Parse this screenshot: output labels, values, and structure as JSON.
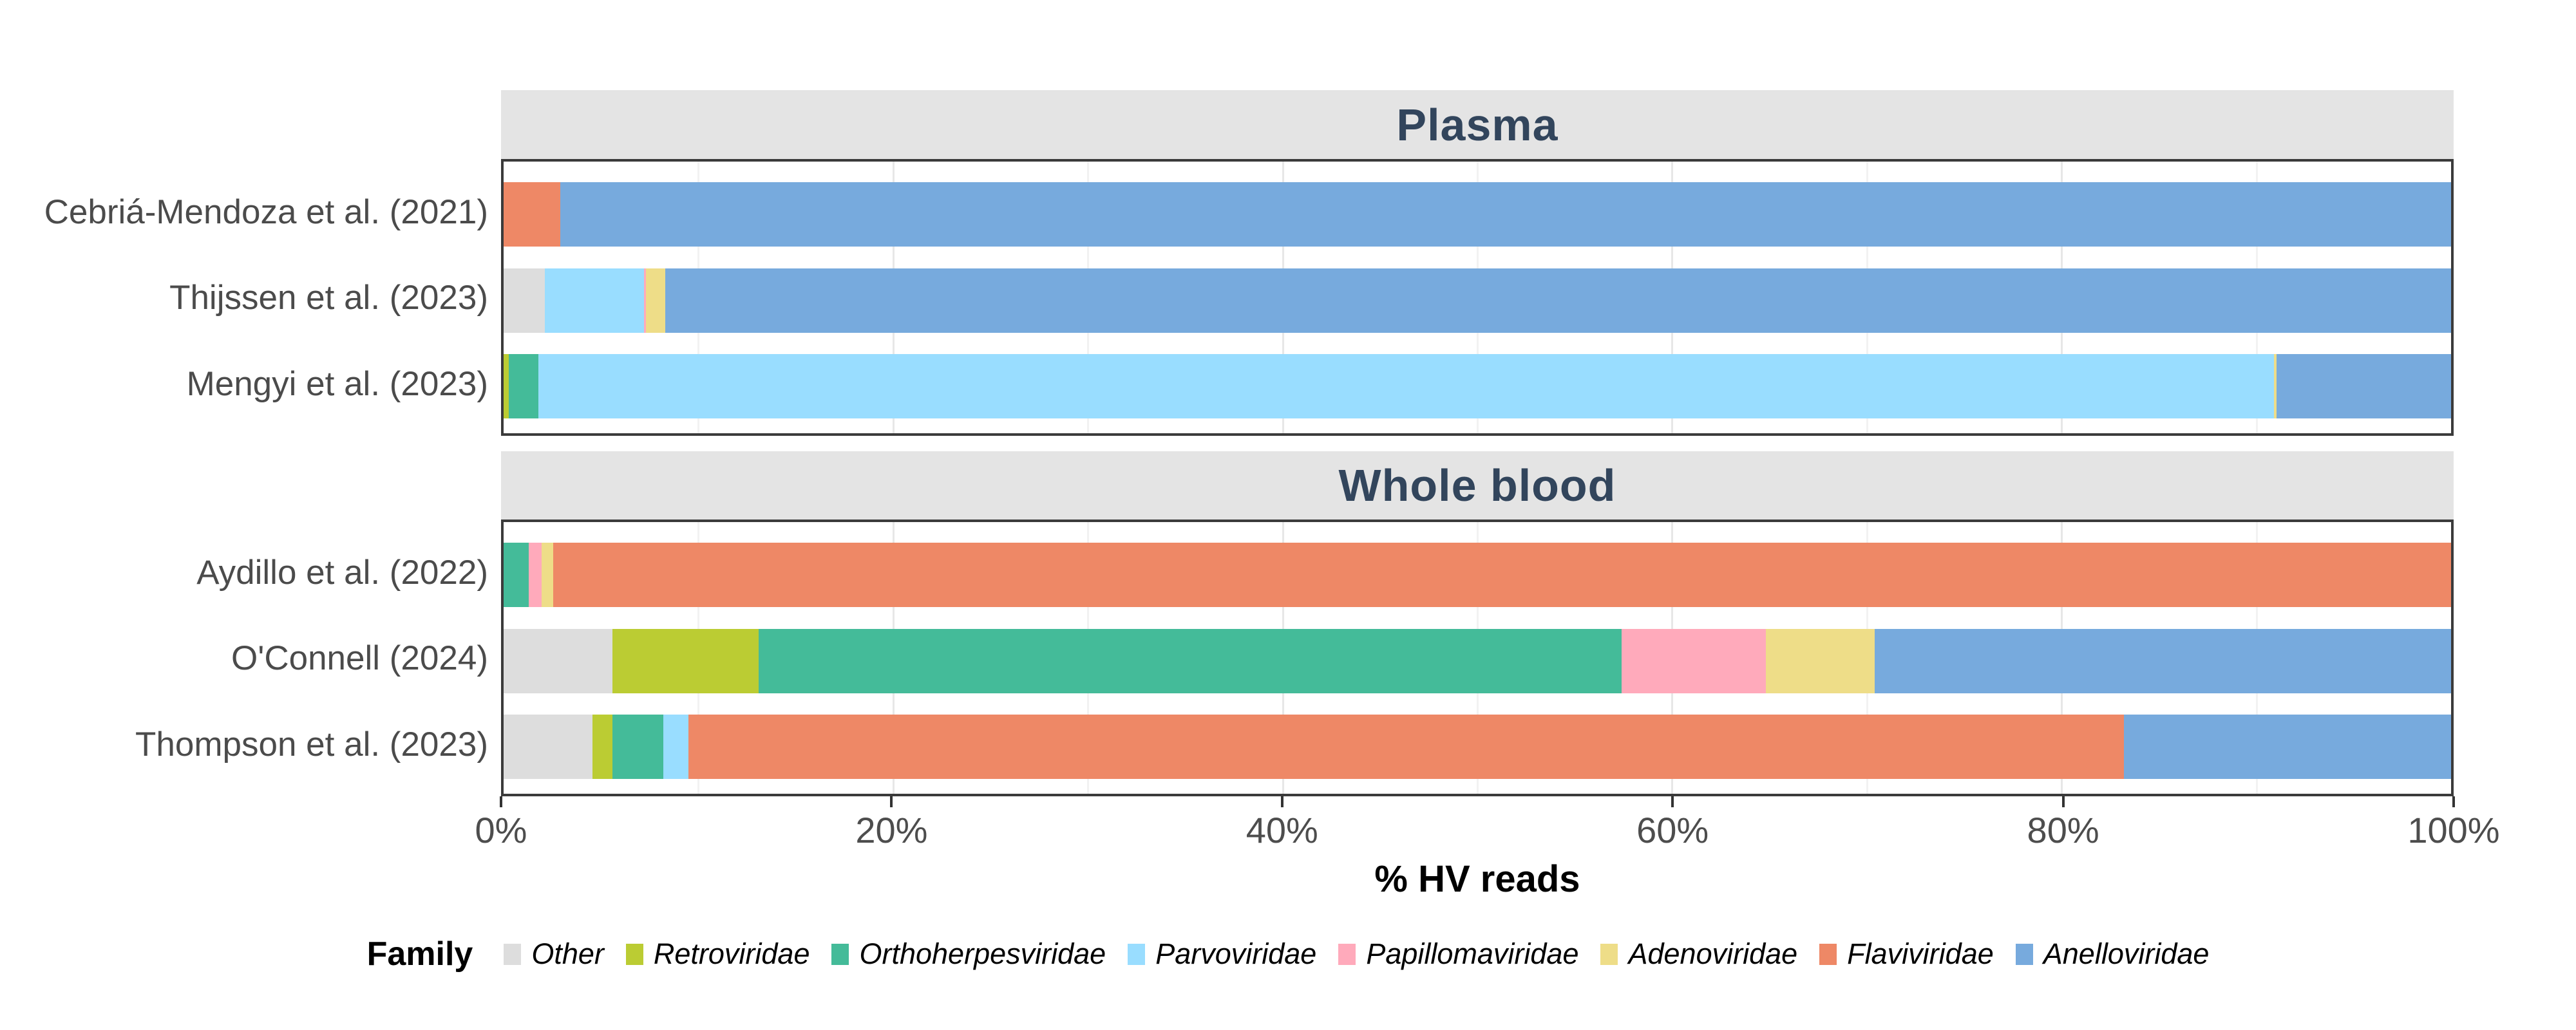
{
  "chart_data": {
    "type": "bar",
    "orientation": "horizontal",
    "stacked": true,
    "units": "percent",
    "x_axis": {
      "label": "% HV reads",
      "range": [
        0,
        100
      ],
      "ticks": [
        {
          "value": 0,
          "label": "0%"
        },
        {
          "value": 20,
          "label": "20%"
        },
        {
          "value": 40,
          "label": "40%"
        },
        {
          "value": 60,
          "label": "60%"
        },
        {
          "value": 80,
          "label": "80%"
        },
        {
          "value": 100,
          "label": "100%"
        }
      ],
      "minor_gridlines": [
        10,
        30,
        50,
        70,
        90
      ],
      "major_gridlines": [
        20,
        40,
        60,
        80
      ]
    },
    "legend": {
      "title": "Family",
      "position": "bottom"
    },
    "families": [
      {
        "name": "Other",
        "color": "#DDDDDD"
      },
      {
        "name": "Retroviridae",
        "color": "#BBCC33"
      },
      {
        "name": "Orthoherpesviridae",
        "color": "#44BB99"
      },
      {
        "name": "Parvoviridae",
        "color": "#99DDFF"
      },
      {
        "name": "Papillomaviridae",
        "color": "#FFAABB"
      },
      {
        "name": "Adenoviridae",
        "color": "#EEDD88"
      },
      {
        "name": "Flaviviridae",
        "color": "#EE8866"
      },
      {
        "name": "Anelloviridae",
        "color": "#77AADD"
      }
    ],
    "panels": [
      {
        "title": "Plasma",
        "rows": [
          {
            "label": "Cebriá-Mendoza et al. (2021)",
            "segments": [
              {
                "family": "Flaviviridae",
                "value": 2.9
              },
              {
                "family": "Anelloviridae",
                "value": 97.1
              }
            ]
          },
          {
            "label": "Thijssen et al. (2023)",
            "segments": [
              {
                "family": "Other",
                "value": 2.1
              },
              {
                "family": "Parvoviridae",
                "value": 5.1
              },
              {
                "family": "Papillomaviridae",
                "value": 0.1
              },
              {
                "family": "Adenoviridae",
                "value": 1.0
              },
              {
                "family": "Anelloviridae",
                "value": 91.7
              }
            ]
          },
          {
            "label": "Mengyi et al. (2023)",
            "segments": [
              {
                "family": "Retroviridae",
                "value": 0.25
              },
              {
                "family": "Orthoherpesviridae",
                "value": 1.55
              },
              {
                "family": "Parvoviridae",
                "value": 89.1
              },
              {
                "family": "Adenoviridae",
                "value": 0.15
              },
              {
                "family": "Anelloviridae",
                "value": 8.95
              }
            ]
          }
        ]
      },
      {
        "title": "Whole blood",
        "rows": [
          {
            "label": "Aydillo et al. (2022)",
            "segments": [
              {
                "family": "Orthoherpesviridae",
                "value": 1.3
              },
              {
                "family": "Papillomaviridae",
                "value": 0.65
              },
              {
                "family": "Adenoviridae",
                "value": 0.6
              },
              {
                "family": "Flaviviridae",
                "value": 97.45
              }
            ]
          },
          {
            "label": "O'Connell (2024)",
            "segments": [
              {
                "family": "Other",
                "value": 5.6
              },
              {
                "family": "Retroviridae",
                "value": 7.5
              },
              {
                "family": "Orthoherpesviridae",
                "value": 44.3
              },
              {
                "family": "Papillomaviridae",
                "value": 7.4
              },
              {
                "family": "Adenoviridae",
                "value": 5.6
              },
              {
                "family": "Anelloviridae",
                "value": 29.6
              }
            ]
          },
          {
            "label": "Thompson et al. (2023)",
            "segments": [
              {
                "family": "Other",
                "value": 4.55
              },
              {
                "family": "Retroviridae",
                "value": 1.05
              },
              {
                "family": "Orthoherpesviridae",
                "value": 2.6
              },
              {
                "family": "Parvoviridae",
                "value": 1.3
              },
              {
                "family": "Flaviviridae",
                "value": 73.7
              },
              {
                "family": "Anelloviridae",
                "value": 16.8
              }
            ]
          }
        ]
      }
    ]
  }
}
